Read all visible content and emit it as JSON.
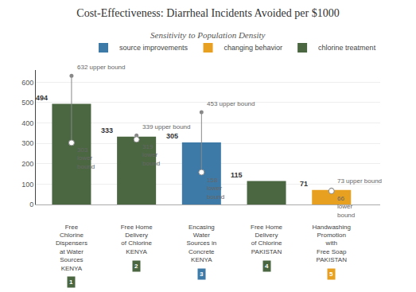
{
  "chart_data": {
    "type": "bar",
    "title": "Cost-Effectiveness: Diarrheal Incidents Avoided per $1000",
    "subtitle": "Sensitivity to Population Density",
    "categories": [
      "Free\nChlorine\nDispensers\nat Water\nSources\nKENYA",
      "Free Home\nDelivery\nof Chlorine\nKENYA",
      "Encasing\nWater\nSources in\nConcrete\nKENYA",
      "Free Home\nDelivery\nof Chlorine\nPAKISTAN",
      "Handwashing\nPromotion\nwith\nFree Soap\nPAKISTAN"
    ],
    "category_numbers": [
      "1",
      "2",
      "3",
      "4",
      "5"
    ],
    "series": [
      {
        "name": "source improvements",
        "color": "#3d7aa8",
        "values": [
          null,
          null,
          305,
          null,
          null
        ]
      },
      {
        "name": "changing behavior",
        "color": "#e8a020",
        "values": [
          null,
          null,
          null,
          null,
          71
        ]
      },
      {
        "name": "chlorine treatment",
        "color": "#4a6741",
        "values": [
          494,
          333,
          null,
          115,
          null
        ]
      }
    ],
    "lower": [
      303,
      319,
      158,
      null,
      66
    ],
    "upper": [
      632,
      339,
      453,
      null,
      73
    ],
    "upper_labels": [
      "632 upper bound",
      "339 upper bound",
      "453 upper bound",
      null,
      "73 upper bound"
    ],
    "lower_labels": [
      "303\nlower\nbound",
      "319\nlower\nbound",
      "158\nlower\nbound",
      null,
      "66\nlower\nbound"
    ],
    "ylim": [
      0,
      660
    ],
    "yticks": [
      0,
      100,
      200,
      300,
      400,
      500,
      600
    ],
    "grid": true,
    "legend": "upper right",
    "data_labels": true
  }
}
